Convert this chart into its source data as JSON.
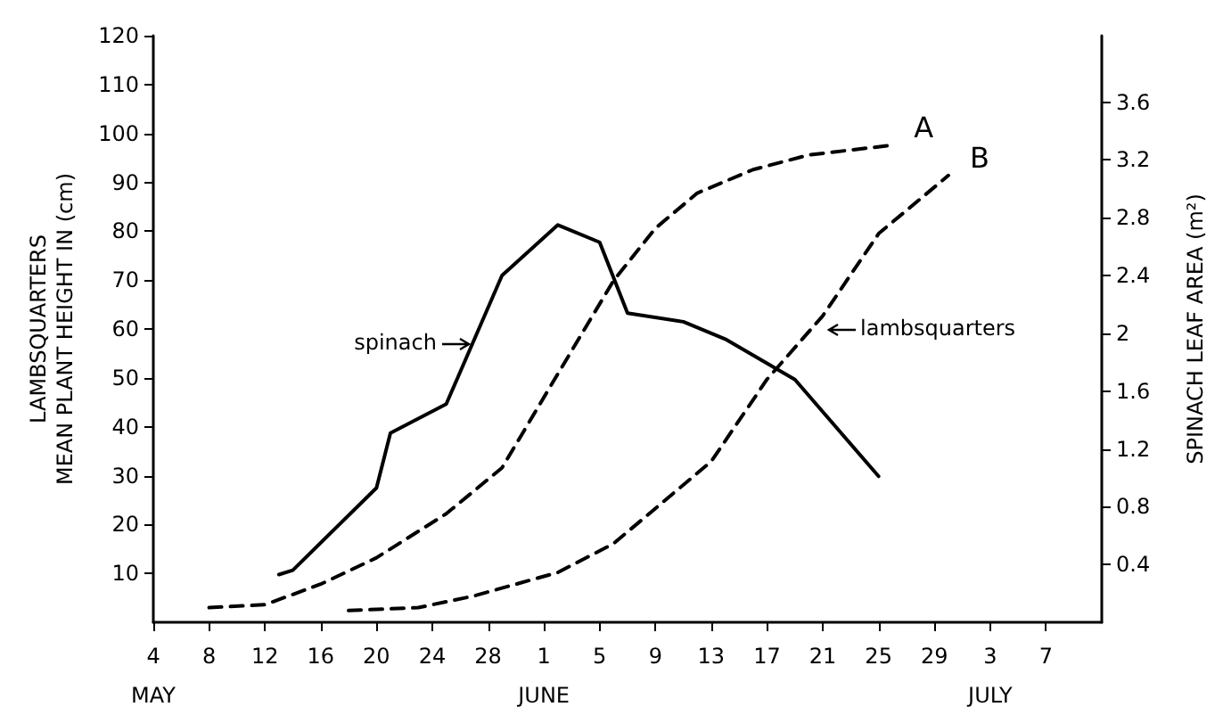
{
  "chart_data": {
    "type": "line",
    "ylabel": "LAMBSQUARTERS\nMEAN PLANT HEIGHT IN (cm)",
    "y2label": "SPINACH LEAF AREA (m²)",
    "xlim": [
      "--05-04",
      "--07-11"
    ],
    "xticks": [
      {
        "value": "--05-04",
        "label": "4\nMAY"
      },
      {
        "value": "--05-08",
        "label": "8"
      },
      {
        "value": "--05-12",
        "label": "12"
      },
      {
        "value": "--05-16",
        "label": "16"
      },
      {
        "value": "--05-20",
        "label": "20"
      },
      {
        "value": "--05-24",
        "label": "24"
      },
      {
        "value": "--05-28",
        "label": "28"
      },
      {
        "value": "--06-01",
        "label": "1\nJUNE"
      },
      {
        "value": "--06-05",
        "label": "5"
      },
      {
        "value": "--06-09",
        "label": "9"
      },
      {
        "value": "--06-13",
        "label": "13"
      },
      {
        "value": "--06-17",
        "label": "17"
      },
      {
        "value": "--06-21",
        "label": "21"
      },
      {
        "value": "--06-25",
        "label": "25"
      },
      {
        "value": "--06-29",
        "label": "29"
      },
      {
        "value": "--07-03",
        "label": "3\nJULY"
      },
      {
        "value": "--07-07",
        "label": "7"
      }
    ],
    "ylim": [
      0,
      120
    ],
    "yticks": [
      10,
      20,
      30,
      40,
      50,
      60,
      70,
      80,
      90,
      100,
      110,
      120
    ],
    "y2lim": [
      0,
      4.06
    ],
    "y2ticks": [
      0.4,
      0.8,
      1.2,
      1.6,
      2.0,
      2.4,
      2.8,
      3.2,
      3.6
    ],
    "grid": false,
    "legend": false,
    "marker": "none",
    "annotations": [
      {
        "text": "spinach",
        "x": "--05-27",
        "y": 57
      },
      {
        "text": "lambsquarters",
        "x": "--06-21",
        "y": 60
      }
    ],
    "series": [
      {
        "color": "#000000",
        "axis": "y2",
        "line_style": "solid",
        "x": [
          "--05-13",
          "--05-14",
          "--05-20",
          "--05-21",
          "--05-25",
          "--05-29",
          "--06-02",
          "--06-05",
          "--06-07",
          "--06-11",
          "--06-14",
          "--06-19",
          "--06-25"
        ],
        "values": [
          0.33,
          0.36,
          0.93,
          1.31,
          1.51,
          2.4,
          2.75,
          2.63,
          2.14,
          2.08,
          1.96,
          1.68,
          1.01
        ]
      },
      {
        "name": "A",
        "color": "#000000",
        "line_style": "dashed",
        "x": [
          "--05-08",
          "--05-12",
          "--05-16",
          "--05-20",
          "--05-25",
          "--05-29",
          "--06-02",
          "--06-06",
          "--06-09",
          "--06-12",
          "--06-16",
          "--06-20",
          "--06-26"
        ],
        "values": [
          3,
          3.6,
          7.8,
          13.2,
          22.2,
          31.6,
          50.8,
          69.9,
          80.6,
          87.8,
          92.6,
          95.6,
          97.6
        ]
      },
      {
        "name": "B",
        "color": "#000000",
        "line_style": "dashed",
        "x": [
          "--05-18",
          "--05-23",
          "--05-27",
          "--06-02",
          "--06-06",
          "--06-08",
          "--06-13",
          "--06-17",
          "--06-21",
          "--06-25",
          "--06-30"
        ],
        "values": [
          2.4,
          3,
          5.4,
          10.2,
          16.1,
          20.9,
          32.9,
          49.7,
          62.7,
          79.5,
          91.4
        ]
      }
    ]
  }
}
